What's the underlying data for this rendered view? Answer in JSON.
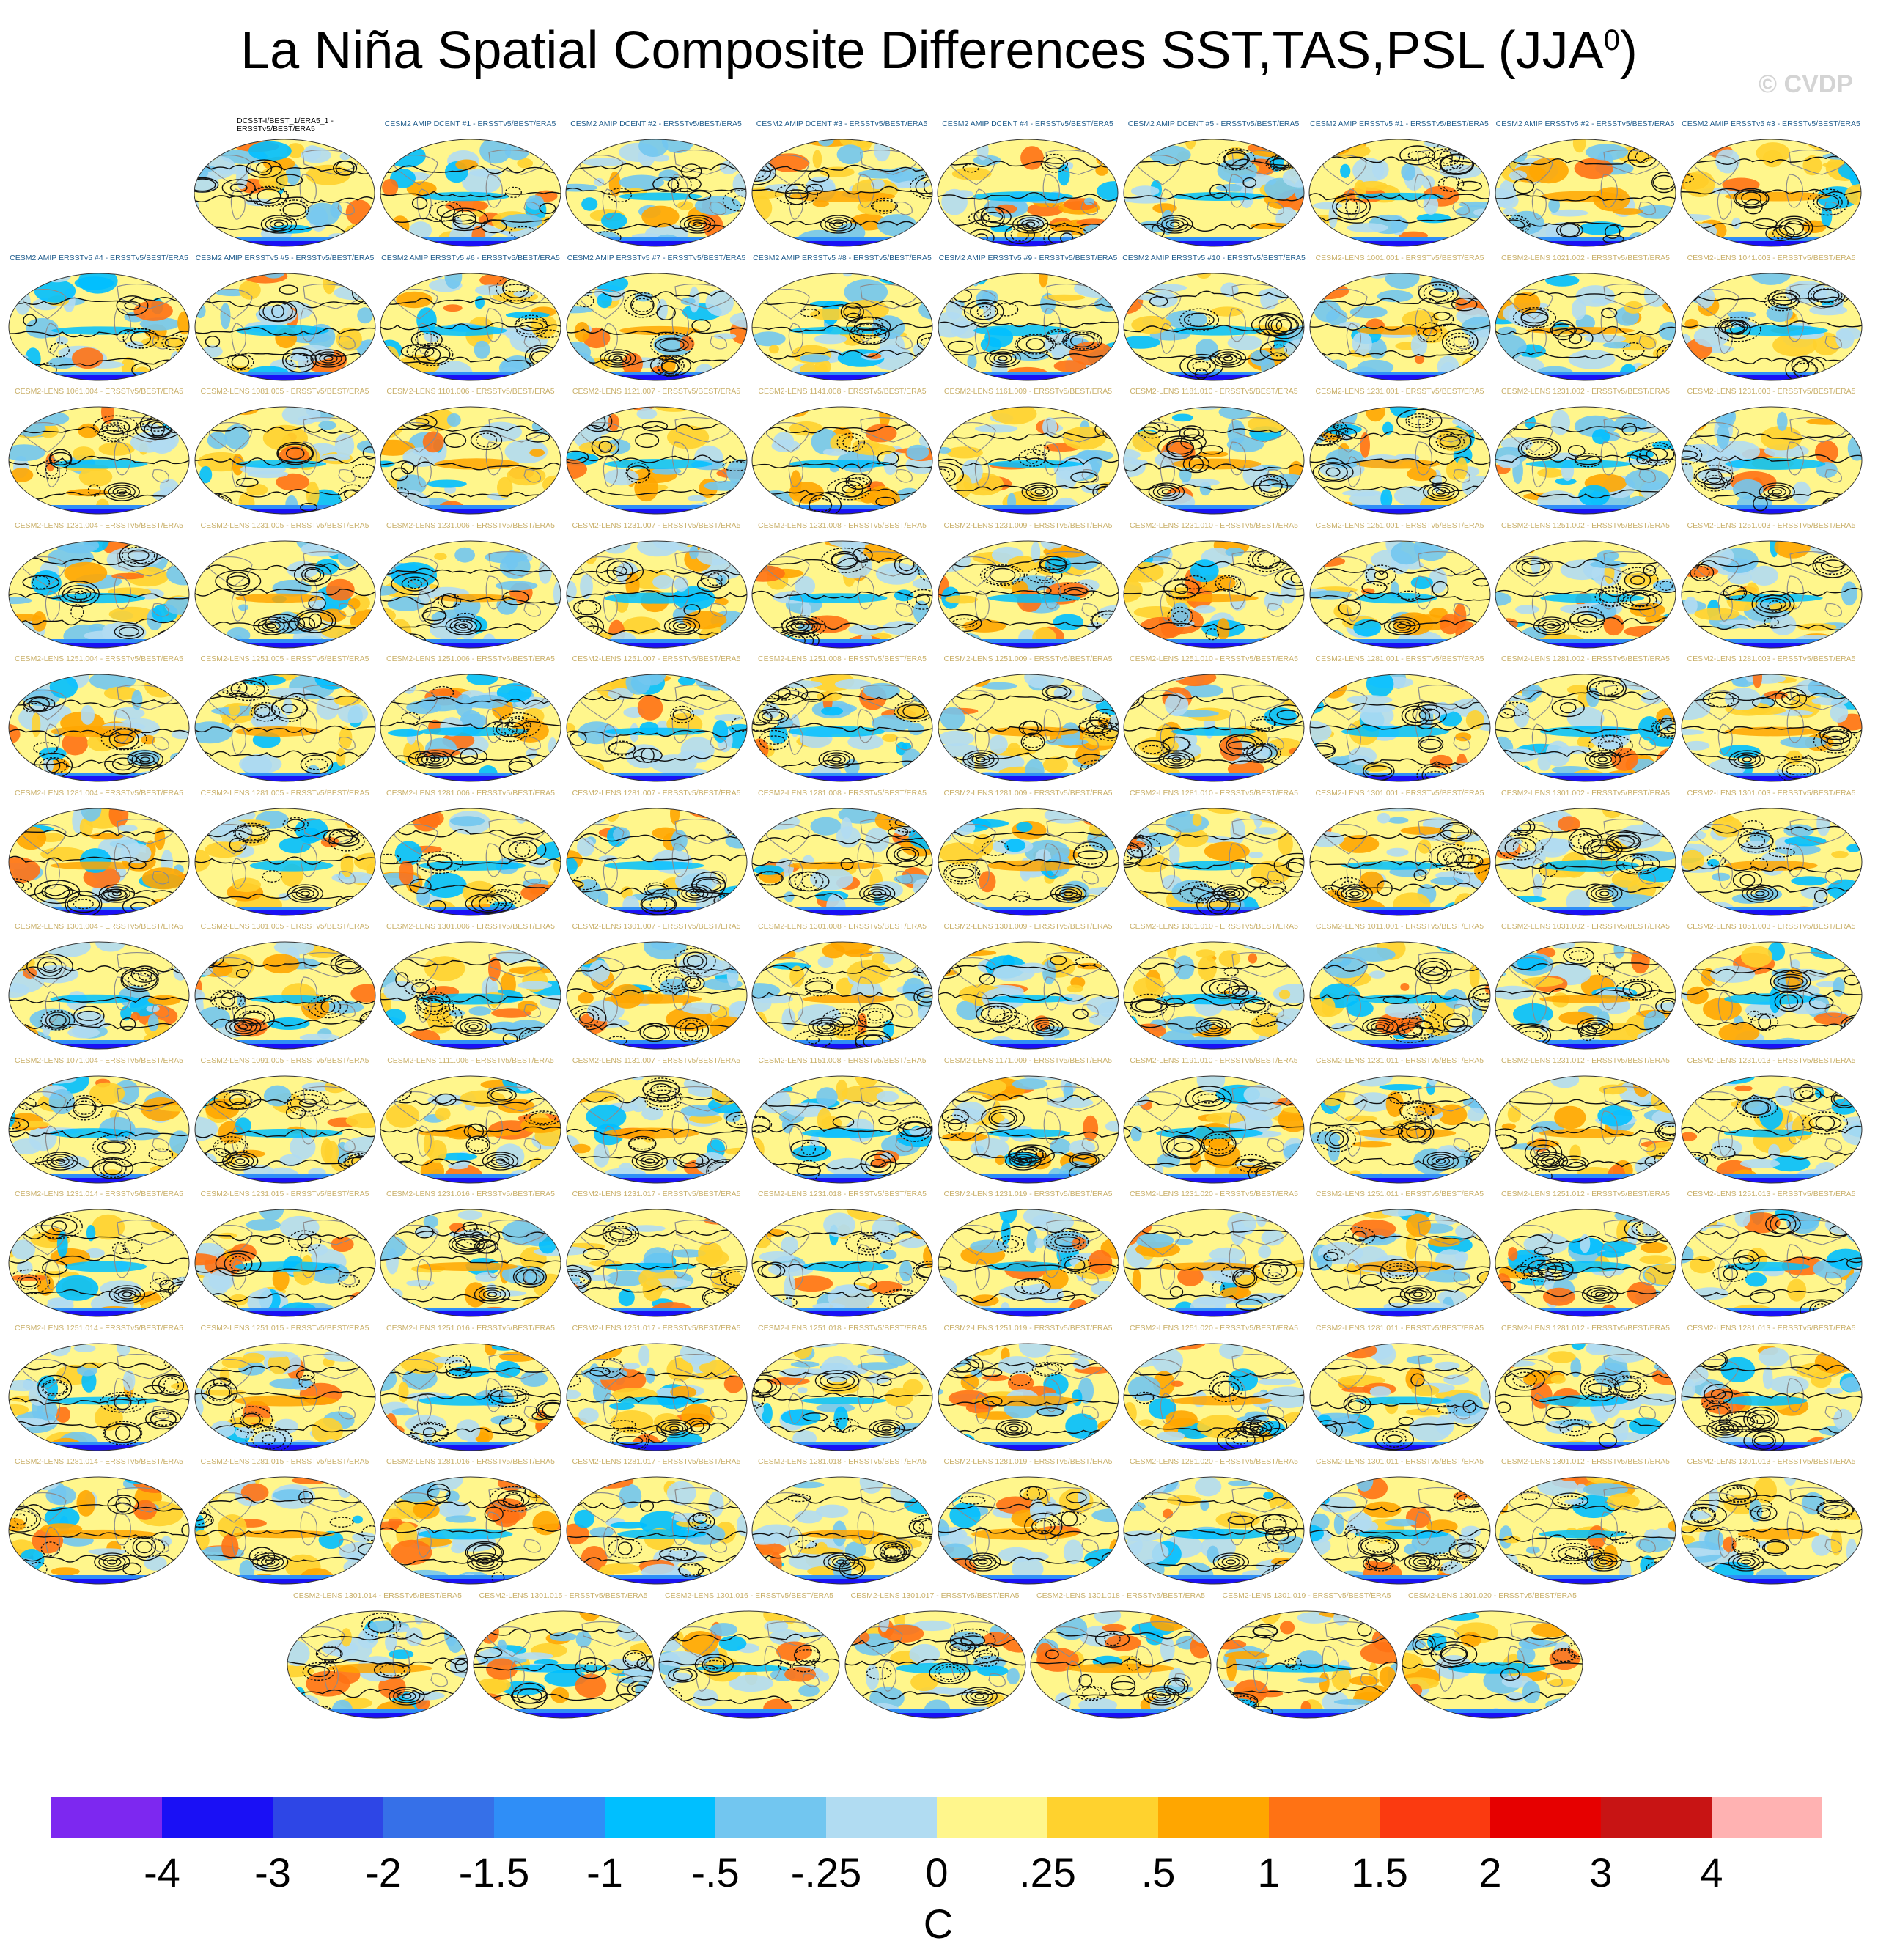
{
  "title": {
    "main": "La Niña Spatial Composite Differences SST,TAS,PSL (JJA",
    "superscript": "0",
    "close": ")"
  },
  "watermark": "© CVDP",
  "units": "C",
  "chart_data": {
    "type": "map-panels",
    "variables": [
      "SST",
      "TAS",
      "PSL"
    ],
    "season": "JJA",
    "colorbar": {
      "labels": [
        "-4",
        "-3",
        "-2",
        "-1.5",
        "-1",
        "-.5",
        "-.25",
        "0",
        ".25",
        ".5",
        "1",
        "1.5",
        "2",
        "3",
        "4"
      ],
      "colors": [
        "#7d28f0",
        "#1a10f5",
        "#2e46e6",
        "#3670e8",
        "#2f8ef7",
        "#00bfff",
        "#72c6f0",
        "#b1dcf2",
        "#fff68c",
        "#ffd22e",
        "#ffa600",
        "#ff7214",
        "#fb3a10",
        "#e60000",
        "#c81414",
        "#ffb2b2"
      ],
      "units": "C"
    },
    "panels": [
      [
        "DCSST-I/BEST_1/ERA5_1 -",
        "ERSSTv5/BEST/ERA5"
      ],
      "CESM2 AMIP DCENT #1 - ERSSTv5/BEST/ERA5",
      "CESM2 AMIP DCENT #2 - ERSSTv5/BEST/ERA5",
      "CESM2 AMIP DCENT #3 - ERSSTv5/BEST/ERA5",
      "CESM2 AMIP DCENT #4 - ERSSTv5/BEST/ERA5",
      "CESM2 AMIP DCENT #5 - ERSSTv5/BEST/ERA5",
      "CESM2 AMIP ERSSTv5 #1 - ERSSTv5/BEST/ERA5",
      "CESM2 AMIP ERSSTv5 #2 - ERSSTv5/BEST/ERA5",
      "CESM2 AMIP ERSSTv5 #3 - ERSSTv5/BEST/ERA5",
      "CESM2 AMIP ERSSTv5 #4 - ERSSTv5/BEST/ERA5",
      "CESM2 AMIP ERSSTv5 #5 - ERSSTv5/BEST/ERA5",
      "CESM2 AMIP ERSSTv5 #6 - ERSSTv5/BEST/ERA5",
      "CESM2 AMIP ERSSTv5 #7 - ERSSTv5/BEST/ERA5",
      "CESM2 AMIP ERSSTv5 #8 - ERSSTv5/BEST/ERA5",
      "CESM2 AMIP ERSSTv5 #9 - ERSSTv5/BEST/ERA5",
      "CESM2 AMIP ERSSTv5 #10 - ERSSTv5/BEST/ERA5",
      "CESM2-LENS 1001.001 - ERSSTv5/BEST/ERA5",
      "CESM2-LENS 1021.002 - ERSSTv5/BEST/ERA5",
      "CESM2-LENS 1041.003 - ERSSTv5/BEST/ERA5",
      "CESM2-LENS 1061.004 - ERSSTv5/BEST/ERA5",
      "CESM2-LENS 1081.005 - ERSSTv5/BEST/ERA5",
      "CESM2-LENS 1101.006 - ERSSTv5/BEST/ERA5",
      "CESM2-LENS 1121.007 - ERSSTv5/BEST/ERA5",
      "CESM2-LENS 1141.008 - ERSSTv5/BEST/ERA5",
      "CESM2-LENS 1161.009 - ERSSTv5/BEST/ERA5",
      "CESM2-LENS 1181.010 - ERSSTv5/BEST/ERA5",
      "CESM2-LENS 1231.001 - ERSSTv5/BEST/ERA5",
      "CESM2-LENS 1231.002 - ERSSTv5/BEST/ERA5",
      "CESM2-LENS 1231.003 - ERSSTv5/BEST/ERA5",
      "CESM2-LENS 1231.004 - ERSSTv5/BEST/ERA5",
      "CESM2-LENS 1231.005 - ERSSTv5/BEST/ERA5",
      "CESM2-LENS 1231.006 - ERSSTv5/BEST/ERA5",
      "CESM2-LENS 1231.007 - ERSSTv5/BEST/ERA5",
      "CESM2-LENS 1231.008 - ERSSTv5/BEST/ERA5",
      "CESM2-LENS 1231.009 - ERSSTv5/BEST/ERA5",
      "CESM2-LENS 1231.010 - ERSSTv5/BEST/ERA5",
      "CESM2-LENS 1251.001 - ERSSTv5/BEST/ERA5",
      "CESM2-LENS 1251.002 - ERSSTv5/BEST/ERA5",
      "CESM2-LENS 1251.003 - ERSSTv5/BEST/ERA5",
      "CESM2-LENS 1251.004 - ERSSTv5/BEST/ERA5",
      "CESM2-LENS 1251.005 - ERSSTv5/BEST/ERA5",
      "CESM2-LENS 1251.006 - ERSSTv5/BEST/ERA5",
      "CESM2-LENS 1251.007 - ERSSTv5/BEST/ERA5",
      "CESM2-LENS 1251.008 - ERSSTv5/BEST/ERA5",
      "CESM2-LENS 1251.009 - ERSSTv5/BEST/ERA5",
      "CESM2-LENS 1251.010 - ERSSTv5/BEST/ERA5",
      "CESM2-LENS 1281.001 - ERSSTv5/BEST/ERA5",
      "CESM2-LENS 1281.002 - ERSSTv5/BEST/ERA5",
      "CESM2-LENS 1281.003 - ERSSTv5/BEST/ERA5",
      "CESM2-LENS 1281.004 - ERSSTv5/BEST/ERA5",
      "CESM2-LENS 1281.005 - ERSSTv5/BEST/ERA5",
      "CESM2-LENS 1281.006 - ERSSTv5/BEST/ERA5",
      "CESM2-LENS 1281.007 - ERSSTv5/BEST/ERA5",
      "CESM2-LENS 1281.008 - ERSSTv5/BEST/ERA5",
      "CESM2-LENS 1281.009 - ERSSTv5/BEST/ERA5",
      "CESM2-LENS 1281.010 - ERSSTv5/BEST/ERA5",
      "CESM2-LENS 1301.001 - ERSSTv5/BEST/ERA5",
      "CESM2-LENS 1301.002 - ERSSTv5/BEST/ERA5",
      "CESM2-LENS 1301.003 - ERSSTv5/BEST/ERA5",
      "CESM2-LENS 1301.004 - ERSSTv5/BEST/ERA5",
      "CESM2-LENS 1301.005 - ERSSTv5/BEST/ERA5",
      "CESM2-LENS 1301.006 - ERSSTv5/BEST/ERA5",
      "CESM2-LENS 1301.007 - ERSSTv5/BEST/ERA5",
      "CESM2-LENS 1301.008 - ERSSTv5/BEST/ERA5",
      "CESM2-LENS 1301.009 - ERSSTv5/BEST/ERA5",
      "CESM2-LENS 1301.010 - ERSSTv5/BEST/ERA5",
      "CESM2-LENS 1011.001 - ERSSTv5/BEST/ERA5",
      "CESM2-LENS 1031.002 - ERSSTv5/BEST/ERA5",
      "CESM2-LENS 1051.003 - ERSSTv5/BEST/ERA5",
      "CESM2-LENS 1071.004 - ERSSTv5/BEST/ERA5",
      "CESM2-LENS 1091.005 - ERSSTv5/BEST/ERA5",
      "CESM2-LENS 1111.006 - ERSSTv5/BEST/ERA5",
      "CESM2-LENS 1131.007 - ERSSTv5/BEST/ERA5",
      "CESM2-LENS 1151.008 - ERSSTv5/BEST/ERA5",
      "CESM2-LENS 1171.009 - ERSSTv5/BEST/ERA5",
      "CESM2-LENS 1191.010 - ERSSTv5/BEST/ERA5",
      "CESM2-LENS 1231.011 - ERSSTv5/BEST/ERA5",
      "CESM2-LENS 1231.012 - ERSSTv5/BEST/ERA5",
      "CESM2-LENS 1231.013 - ERSSTv5/BEST/ERA5",
      "CESM2-LENS 1231.014 - ERSSTv5/BEST/ERA5",
      "CESM2-LENS 1231.015 - ERSSTv5/BEST/ERA5",
      "CESM2-LENS 1231.016 - ERSSTv5/BEST/ERA5",
      "CESM2-LENS 1231.017 - ERSSTv5/BEST/ERA5",
      "CESM2-LENS 1231.018 - ERSSTv5/BEST/ERA5",
      "CESM2-LENS 1231.019 - ERSSTv5/BEST/ERA5",
      "CESM2-LENS 1231.020 - ERSSTv5/BEST/ERA5",
      "CESM2-LENS 1251.011 - ERSSTv5/BEST/ERA5",
      "CESM2-LENS 1251.012 - ERSSTv5/BEST/ERA5",
      "CESM2-LENS 1251.013 - ERSSTv5/BEST/ERA5",
      "CESM2-LENS 1251.014 - ERSSTv5/BEST/ERA5",
      "CESM2-LENS 1251.015 - ERSSTv5/BEST/ERA5",
      "CESM2-LENS 1251.016 - ERSSTv5/BEST/ERA5",
      "CESM2-LENS 1251.017 - ERSSTv5/BEST/ERA5",
      "CESM2-LENS 1251.018 - ERSSTv5/BEST/ERA5",
      "CESM2-LENS 1251.019 - ERSSTv5/BEST/ERA5",
      "CESM2-LENS 1251.020 - ERSSTv5/BEST/ERA5",
      "CESM2-LENS 1281.011 - ERSSTv5/BEST/ERA5",
      "CESM2-LENS 1281.012 - ERSSTv5/BEST/ERA5",
      "CESM2-LENS 1281.013 - ERSSTv5/BEST/ERA5",
      "CESM2-LENS 1281.014 - ERSSTv5/BEST/ERA5",
      "CESM2-LENS 1281.015 - ERSSTv5/BEST/ERA5",
      "CESM2-LENS 1281.016 - ERSSTv5/BEST/ERA5",
      "CESM2-LENS 1281.017 - ERSSTv5/BEST/ERA5",
      "CESM2-LENS 1281.018 - ERSSTv5/BEST/ERA5",
      "CESM2-LENS 1281.019 - ERSSTv5/BEST/ERA5",
      "CESM2-LENS 1281.020 - ERSSTv5/BEST/ERA5",
      "CESM2-LENS 1301.011 - ERSSTv5/BEST/ERA5",
      "CESM2-LENS 1301.012 - ERSSTv5/BEST/ERA5",
      "CESM2-LENS 1301.013 - ERSSTv5/BEST/ERA5",
      "CESM2-LENS 1301.014 - ERSSTv5/BEST/ERA5",
      "CESM2-LENS 1301.015 - ERSSTv5/BEST/ERA5",
      "CESM2-LENS 1301.016 - ERSSTv5/BEST/ERA5",
      "CESM2-LENS 1301.017 - ERSSTv5/BEST/ERA5",
      "CESM2-LENS 1301.018 - ERSSTv5/BEST/ERA5",
      "CESM2-LENS 1301.019 - ERSSTv5/BEST/ERA5",
      "CESM2-LENS 1301.020 - ERSSTv5/BEST/ERA5"
    ]
  }
}
